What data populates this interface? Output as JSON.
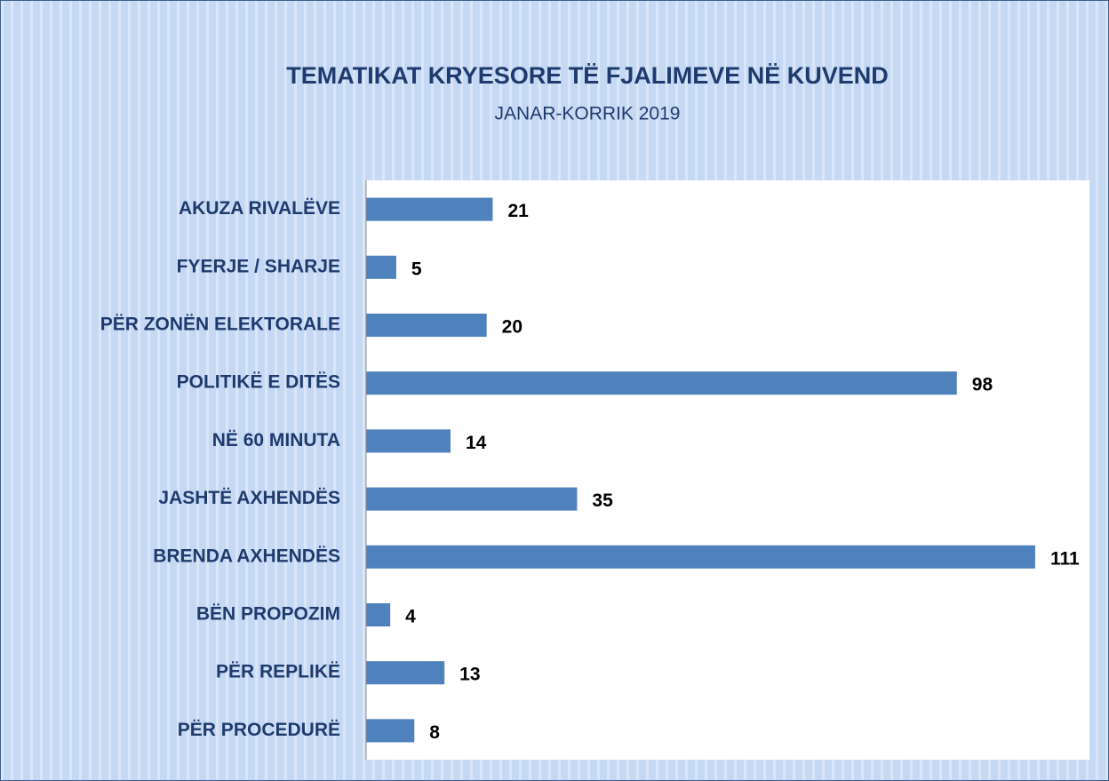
{
  "chart_data": {
    "type": "bar",
    "orientation": "horizontal",
    "title": "TEMATIKAT KRYESORE TË FJALIMEVE NË KUVEND",
    "subtitle": "JANAR-KORRIK 2019",
    "categories": [
      "AKUZA RIVALËVE",
      "FYERJE / SHARJE",
      "PËR ZONËN ELEKTORALE",
      "POLITIKË E DITËS",
      "NË 60 MINUTA",
      "JASHTË AXHENDËS",
      "BRENDA AXHENDËS",
      "BËN PROPOZIM",
      "PËR REPLIKË",
      "PËR PROCEDURË"
    ],
    "values": [
      21,
      5,
      20,
      98,
      14,
      35,
      111,
      4,
      13,
      8
    ],
    "color": "#4f81bd",
    "xlim": [
      0,
      120
    ]
  }
}
